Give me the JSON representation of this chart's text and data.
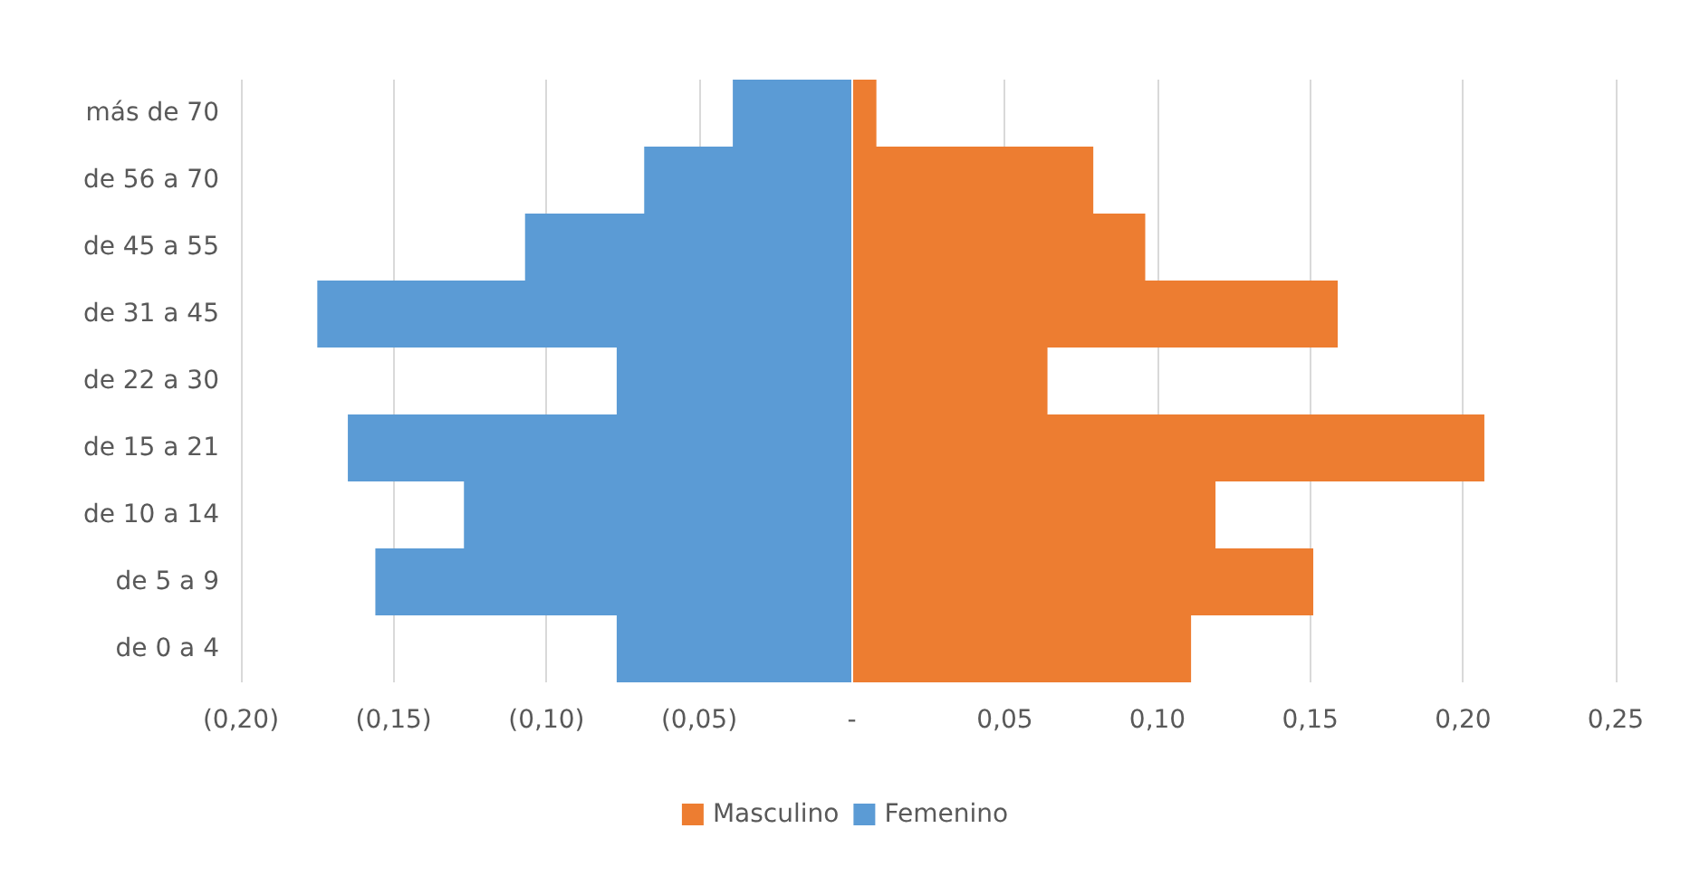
{
  "chart_data": {
    "type": "bar",
    "orientation": "horizontal",
    "stacked": true,
    "categories": [
      "más de 70",
      "de 56 a 70",
      "de 45 a 55",
      "de 31 a 45",
      "de 22 a 30",
      "de 15 a 21",
      "de 10 a 14",
      "de 5 a 9",
      "de 0 a 4"
    ],
    "series": [
      {
        "name": "Masculino",
        "color": "#ed7d31",
        "values": [
          0.008,
          0.079,
          0.096,
          0.159,
          0.064,
          0.207,
          0.119,
          0.151,
          0.111
        ]
      },
      {
        "name": "Femenino",
        "color": "#5b9bd5",
        "values": [
          -0.039,
          -0.068,
          -0.107,
          -0.175,
          -0.077,
          -0.165,
          -0.127,
          -0.156,
          -0.077
        ]
      }
    ],
    "xlim": [
      -0.2,
      0.25
    ],
    "xticks": [
      {
        "value": -0.2,
        "label": "(0,20)"
      },
      {
        "value": -0.15,
        "label": "(0,15)"
      },
      {
        "value": -0.1,
        "label": "(0,10)"
      },
      {
        "value": -0.05,
        "label": "(0,05)"
      },
      {
        "value": 0,
        "label": "-"
      },
      {
        "value": 0.05,
        "label": "0,05"
      },
      {
        "value": 0.1,
        "label": "0,10"
      },
      {
        "value": 0.15,
        "label": "0,15"
      },
      {
        "value": 0.2,
        "label": "0,20"
      },
      {
        "value": 0.25,
        "label": "0,25"
      }
    ],
    "grid": "x",
    "legend": "bottom"
  }
}
